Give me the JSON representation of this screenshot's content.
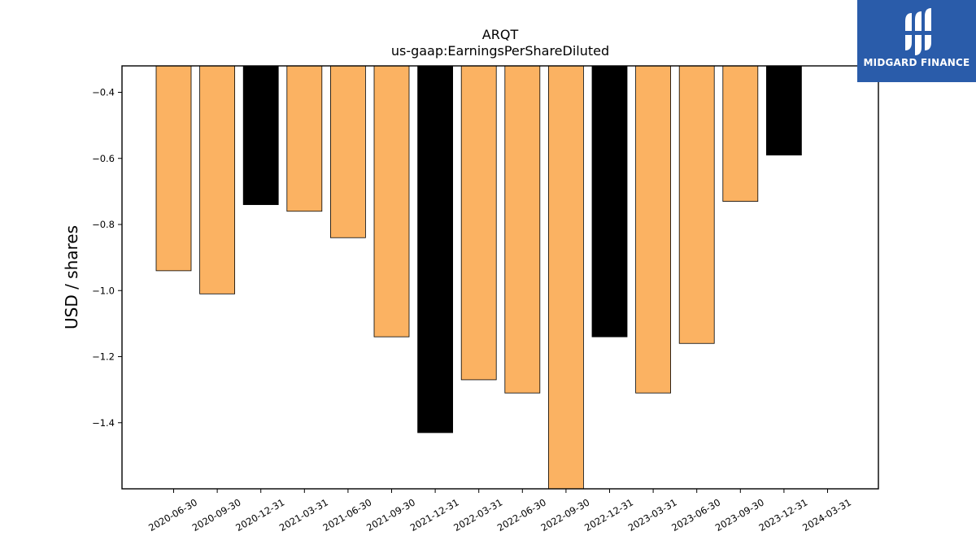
{
  "brand": {
    "name": "MIDGARD FINANCE",
    "background": "#2a5caa"
  },
  "chart_data": {
    "type": "bar",
    "title": "ARQT",
    "subtitle": "us-gaap:EarningsPerShareDiluted",
    "xlabel": "",
    "ylabel": "USD / shares",
    "ylim": [
      -1.6,
      -0.32
    ],
    "yticks": [
      -0.4,
      -0.6,
      -0.8,
      -1.0,
      -1.2,
      -1.4
    ],
    "ytick_labels": [
      "−0.4",
      "−0.6",
      "−0.8",
      "−1.0",
      "−1.2",
      "−1.4"
    ],
    "grid": false,
    "categories": [
      "2020-06-30",
      "2020-09-30",
      "2020-12-31",
      "2021-03-31",
      "2021-06-30",
      "2021-09-30",
      "2021-12-31",
      "2022-03-31",
      "2022-06-30",
      "2022-09-30",
      "2022-12-31",
      "2023-03-31",
      "2023-06-30",
      "2023-09-30",
      "2023-12-31",
      "2024-03-31"
    ],
    "values": [
      -0.94,
      -1.01,
      -0.74,
      -0.76,
      -0.84,
      -1.14,
      -1.43,
      -1.27,
      -1.31,
      -1.6,
      -1.14,
      -1.31,
      -1.16,
      -0.73,
      -0.59,
      null
    ],
    "bar_colors": [
      "#fbb262",
      "#fbb262",
      "#000000",
      "#fbb262",
      "#fbb262",
      "#fbb262",
      "#000000",
      "#fbb262",
      "#fbb262",
      "#fbb262",
      "#000000",
      "#fbb262",
      "#fbb262",
      "#fbb262",
      "#000000",
      "#fbb262"
    ]
  }
}
